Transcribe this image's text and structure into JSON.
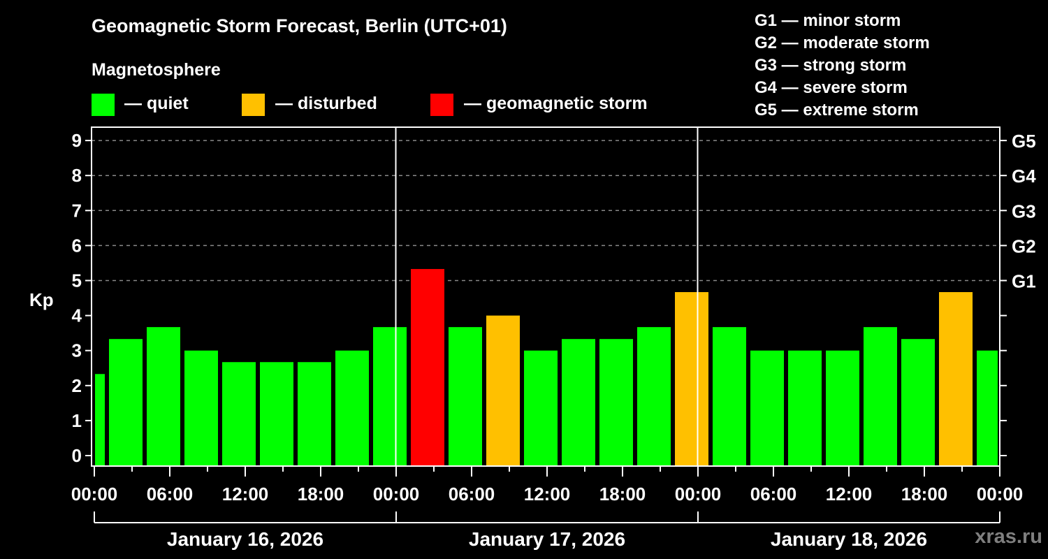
{
  "header": {
    "title": "Geomagnetic Storm Forecast, Berlin (UTC+01)",
    "legend_title": "Magnetosphere",
    "legend": [
      {
        "label": "— quiet",
        "color": "#00ff00"
      },
      {
        "label": "— disturbed",
        "color": "#ffc000"
      },
      {
        "label": "— geomagnetic storm",
        "color": "#ff0000"
      }
    ],
    "g_scale": [
      "G1 — minor storm",
      "G2 — moderate storm",
      "G3 — strong storm",
      "G4 — severe storm",
      "G5 — extreme storm"
    ]
  },
  "watermark": "xras.ru",
  "chart_data": {
    "type": "bar",
    "title": "Geomagnetic Storm Forecast, Berlin (UTC+01)",
    "ylabel": "Kp",
    "xlabel": "",
    "ylim": [
      0,
      9
    ],
    "yticks": [
      0,
      1,
      2,
      3,
      4,
      5,
      6,
      7,
      8,
      9
    ],
    "right_axis_labels": [
      {
        "kp": 5,
        "label": "G1"
      },
      {
        "kp": 6,
        "label": "G2"
      },
      {
        "kp": 7,
        "label": "G3"
      },
      {
        "kp": 8,
        "label": "G4"
      },
      {
        "kp": 9,
        "label": "G5"
      }
    ],
    "grid": "dashed horizontal at Kp 5-9",
    "xticks": [
      "00:00",
      "06:00",
      "12:00",
      "18:00",
      "00:00",
      "06:00",
      "12:00",
      "18:00",
      "00:00",
      "06:00",
      "12:00",
      "18:00",
      "00:00"
    ],
    "days": [
      "January 16, 2026",
      "January 17, 2026",
      "January 18, 2026"
    ],
    "colors": {
      "quiet": "#00ff00",
      "disturbed": "#ffc000",
      "storm": "#ff0000"
    },
    "bars": [
      {
        "start_h": 0,
        "end_h": 1,
        "kp": 2.33,
        "level": "quiet"
      },
      {
        "start_h": 1,
        "end_h": 4,
        "kp": 3.33,
        "level": "quiet"
      },
      {
        "start_h": 4,
        "end_h": 7,
        "kp": 3.67,
        "level": "quiet"
      },
      {
        "start_h": 7,
        "end_h": 10,
        "kp": 3.0,
        "level": "quiet"
      },
      {
        "start_h": 10,
        "end_h": 13,
        "kp": 2.67,
        "level": "quiet"
      },
      {
        "start_h": 13,
        "end_h": 16,
        "kp": 2.67,
        "level": "quiet"
      },
      {
        "start_h": 16,
        "end_h": 19,
        "kp": 2.67,
        "level": "quiet"
      },
      {
        "start_h": 19,
        "end_h": 22,
        "kp": 3.0,
        "level": "quiet"
      },
      {
        "start_h": 22,
        "end_h": 25,
        "kp": 3.67,
        "level": "quiet"
      },
      {
        "start_h": 25,
        "end_h": 28,
        "kp": 5.33,
        "level": "storm"
      },
      {
        "start_h": 28,
        "end_h": 31,
        "kp": 3.67,
        "level": "quiet"
      },
      {
        "start_h": 31,
        "end_h": 34,
        "kp": 4.0,
        "level": "disturbed"
      },
      {
        "start_h": 34,
        "end_h": 37,
        "kp": 3.0,
        "level": "quiet"
      },
      {
        "start_h": 37,
        "end_h": 40,
        "kp": 3.33,
        "level": "quiet"
      },
      {
        "start_h": 40,
        "end_h": 43,
        "kp": 3.33,
        "level": "quiet"
      },
      {
        "start_h": 43,
        "end_h": 46,
        "kp": 3.67,
        "level": "quiet"
      },
      {
        "start_h": 46,
        "end_h": 49,
        "kp": 4.67,
        "level": "disturbed"
      },
      {
        "start_h": 49,
        "end_h": 52,
        "kp": 3.67,
        "level": "quiet"
      },
      {
        "start_h": 52,
        "end_h": 55,
        "kp": 3.0,
        "level": "quiet"
      },
      {
        "start_h": 55,
        "end_h": 58,
        "kp": 3.0,
        "level": "quiet"
      },
      {
        "start_h": 58,
        "end_h": 61,
        "kp": 3.0,
        "level": "quiet"
      },
      {
        "start_h": 61,
        "end_h": 64,
        "kp": 3.67,
        "level": "quiet"
      },
      {
        "start_h": 64,
        "end_h": 67,
        "kp": 3.33,
        "level": "quiet"
      },
      {
        "start_h": 67,
        "end_h": 70,
        "kp": 4.67,
        "level": "disturbed"
      },
      {
        "start_h": 70,
        "end_h": 72,
        "kp": 3.0,
        "level": "quiet"
      }
    ]
  }
}
